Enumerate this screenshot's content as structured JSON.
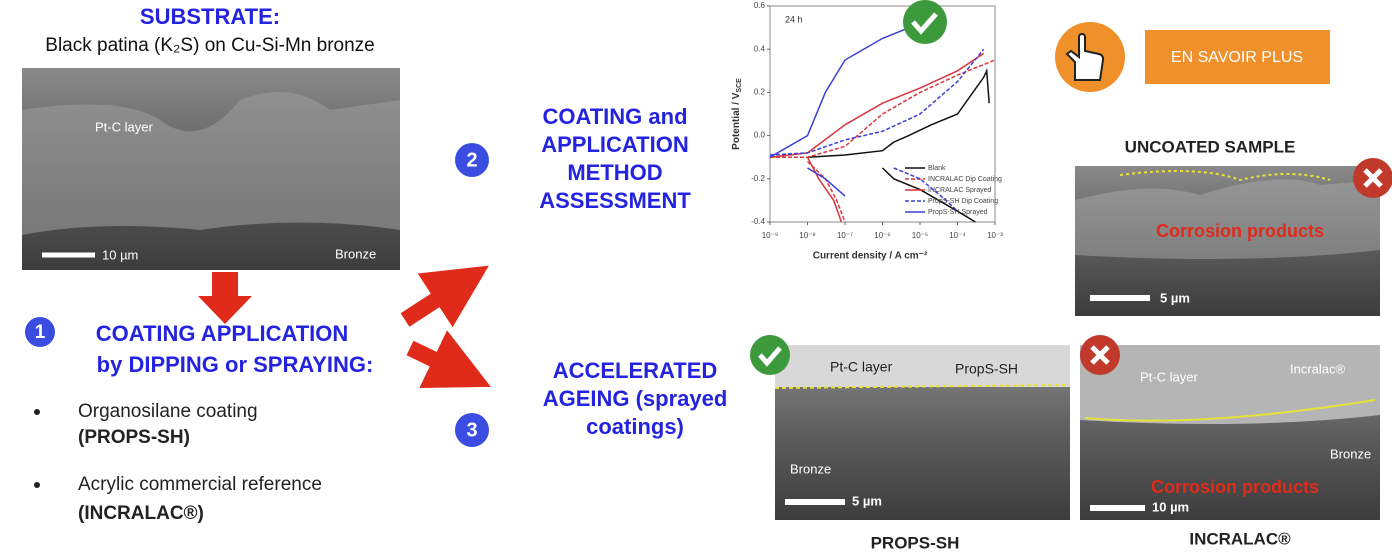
{
  "substrate": {
    "title": "SUBSTRATE:",
    "subtitle": "Black patina (K₂S) on Cu-Si-Mn bronze",
    "image_labels": [
      "Pt-C layer",
      "Bronze",
      "10 µm"
    ]
  },
  "step1": {
    "number": "1",
    "title": [
      "COATING APPLICATION",
      "by DIPPING or SPRAYING:"
    ],
    "bullets": [
      [
        "Organosilane coating",
        "(PROPS-SH)"
      ],
      [
        "Acrylic commercial reference",
        "(INCRALAC®)"
      ]
    ]
  },
  "step2": {
    "number": "2",
    "title": [
      "COATING and",
      "APPLICATION",
      "METHOD",
      "ASSESSMENT"
    ]
  },
  "step3": {
    "number": "3",
    "title": [
      "ACCELERATED",
      "AGEING (sprayed",
      "coatings)"
    ]
  },
  "button": {
    "label": "EN SAVOIR PLUS"
  },
  "uncoated": {
    "title": "UNCOATED SAMPLE",
    "image_labels": [
      "Corrosion products",
      "5 µm"
    ]
  },
  "props_sh": {
    "caption": "PROPS-SH",
    "image_labels": [
      "Pt-C layer",
      "PropS-SH",
      "Bronze",
      "5 µm"
    ]
  },
  "incralac": {
    "caption": "INCRALAC®",
    "image_labels": [
      "Pt-C layer",
      "Incralac®",
      "Bronze",
      "Corrosion products",
      "10 µm"
    ]
  },
  "chart_data": {
    "type": "line",
    "annotation": "24 h",
    "x_label": "Current density / A cm⁻²",
    "y_label": "Potential / V",
    "y_label_sub": "SCE",
    "log_x": true,
    "xlim": [
      1e-09,
      0.001
    ],
    "xticks": [
      {
        "value": 1e-09,
        "label": "10⁻⁹"
      },
      {
        "value": 1e-08,
        "label": "10⁻⁸"
      },
      {
        "value": 1e-07,
        "label": "10⁻⁷"
      },
      {
        "value": 1e-06,
        "label": "10⁻⁶"
      },
      {
        "value": 1e-05,
        "label": "10⁻⁵"
      },
      {
        "value": 0.0001,
        "label": "10⁻⁴"
      },
      {
        "value": 0.001,
        "label": "10⁻³"
      }
    ],
    "ylim": [
      -0.4,
      0.6
    ],
    "yticks": [
      -0.4,
      -0.2,
      {
        "value": 0,
        "label": "0.0"
      },
      0.2,
      0.4,
      0.6
    ],
    "series": [
      {
        "name": "Blank",
        "color": "#111111",
        "dash": false,
        "x": [
          1e-08,
          1e-07,
          1e-06,
          2e-06,
          5e-06,
          2e-05,
          0.0001,
          0.0005,
          0.0006,
          0.0007,
          null,
          1e-06,
          2e-06,
          1e-05,
          0.0001,
          0.0003
        ],
        "values": [
          -0.1,
          -0.09,
          -0.07,
          -0.03,
          0,
          0.05,
          0.1,
          0.27,
          0.3,
          0.15,
          null,
          -0.15,
          -0.2,
          -0.25,
          -0.35,
          -0.4
        ]
      },
      {
        "name": "INCRALAC Dip Coating",
        "color": "#d9363e",
        "dash": true,
        "x": [
          1e-09,
          1e-08,
          1e-07,
          1e-06,
          1e-05,
          0.0001,
          0.001,
          null,
          1e-08,
          3e-08,
          6e-08,
          1e-07
        ],
        "values": [
          -0.1,
          -0.1,
          -0.05,
          0.1,
          0.2,
          0.28,
          0.35,
          null,
          -0.12,
          -0.2,
          -0.3,
          -0.4
        ]
      },
      {
        "name": "INCRALAC Sprayed",
        "color": "#d9363e",
        "dash": false,
        "x": [
          1e-09,
          1e-08,
          1e-07,
          1e-06,
          1e-05,
          0.0001,
          0.0005,
          null,
          1e-08,
          2e-08,
          5e-08,
          8e-08
        ],
        "values": [
          -0.1,
          -0.08,
          0.05,
          0.15,
          0.22,
          0.3,
          0.38,
          null,
          -0.1,
          -0.2,
          -0.3,
          -0.4
        ]
      },
      {
        "name": "PropS-SH Dip Coating",
        "color": "#3a3fd6",
        "dash": true,
        "x": [
          1e-09,
          1e-08,
          1e-07,
          1e-06,
          1e-05,
          0.0001,
          0.0005,
          null,
          2e-06,
          1e-05,
          5e-05,
          0.0001
        ],
        "values": [
          -0.09,
          -0.08,
          -0.02,
          0.02,
          0.1,
          0.25,
          0.4,
          null,
          -0.15,
          -0.2,
          -0.3,
          -0.35
        ]
      },
      {
        "name": "PropS-SH Sprayed",
        "color": "#3a3fd6",
        "dash": false,
        "x": [
          1e-09,
          1e-08,
          3e-08,
          1e-07,
          1e-06,
          1e-05,
          null,
          1e-08,
          3e-08,
          1e-07
        ],
        "values": [
          -0.1,
          0,
          0.2,
          0.35,
          0.45,
          0.52,
          null,
          -0.15,
          -0.2,
          -0.28
        ]
      }
    ]
  }
}
